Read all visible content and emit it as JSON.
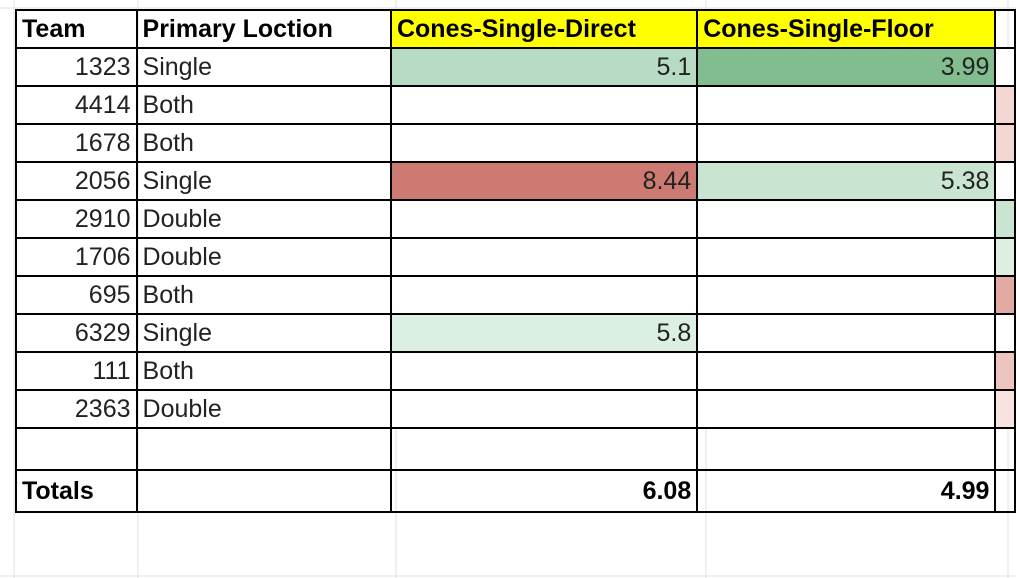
{
  "headers": {
    "team": "Team",
    "location": "Primary Loction",
    "direct": "Cones-Single-Direct",
    "floor": "Cones-Single-Floor"
  },
  "rows": [
    {
      "team": "1323",
      "location": "Single",
      "direct": "5.1",
      "floor": "3.99",
      "direct_color": "#b7dcc3",
      "floor_color": "#82bd8f",
      "edge_color": "#ffffff"
    },
    {
      "team": "4414",
      "location": "Both",
      "direct": "",
      "floor": "",
      "direct_color": "#ffffff",
      "floor_color": "#ffffff",
      "edge_color": "#f4d6d2"
    },
    {
      "team": "1678",
      "location": "Both",
      "direct": "",
      "floor": "",
      "direct_color": "#ffffff",
      "floor_color": "#ffffff",
      "edge_color": "#f4d6d2"
    },
    {
      "team": "2056",
      "location": "Single",
      "direct": "8.44",
      "floor": "5.38",
      "direct_color": "#cd7b72",
      "floor_color": "#c9e5d1",
      "edge_color": "#ffffff"
    },
    {
      "team": "2910",
      "location": "Double",
      "direct": "",
      "floor": "",
      "direct_color": "#ffffff",
      "floor_color": "#ffffff",
      "edge_color": "#c9e5d1"
    },
    {
      "team": "1706",
      "location": "Double",
      "direct": "",
      "floor": "",
      "direct_color": "#ffffff",
      "floor_color": "#ffffff",
      "edge_color": "#dcefe2"
    },
    {
      "team": "695",
      "location": "Both",
      "direct": "",
      "floor": "",
      "direct_color": "#ffffff",
      "floor_color": "#ffffff",
      "edge_color": "#e3aaa3"
    },
    {
      "team": "6329",
      "location": "Single",
      "direct": "5.8",
      "floor": "",
      "direct_color": "#dcefe3",
      "floor_color": "#ffffff",
      "edge_color": "#ffffff"
    },
    {
      "team": "111",
      "location": "Both",
      "direct": "",
      "floor": "",
      "direct_color": "#ffffff",
      "floor_color": "#ffffff",
      "edge_color": "#eec4bf"
    },
    {
      "team": "2363",
      "location": "Double",
      "direct": "",
      "floor": "",
      "direct_color": "#ffffff",
      "floor_color": "#ffffff",
      "edge_color": "#f8e3e0"
    }
  ],
  "totals": {
    "label": "Totals",
    "direct": "6.08",
    "floor": "4.99"
  },
  "colors": {
    "header_yellow": "#ffff00",
    "gridline": "#e2e2e2"
  }
}
